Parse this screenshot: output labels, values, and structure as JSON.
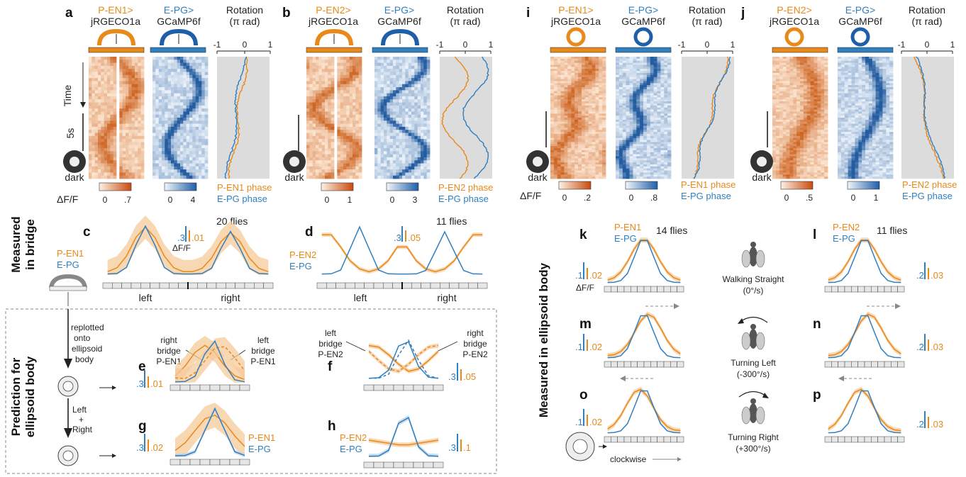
{
  "top_row": {
    "a": {
      "label": "a",
      "left_title": [
        "P-EN1>",
        "jRGECO1a"
      ],
      "right_title": [
        "E-PG>",
        "GCaMP6f"
      ],
      "rot_title": [
        "Rotation",
        "(π rad)"
      ],
      "rot_ticks": [
        "-1",
        "0",
        "1"
      ],
      "time_label": "Time",
      "scale_label": "5s",
      "dark": "dark",
      "left_cbar": [
        "0",
        ".7"
      ],
      "right_cbar": [
        "0",
        "4"
      ],
      "phase": [
        "P-EN1 phase",
        "E-PG phase"
      ],
      "dff": "ΔF/F"
    },
    "b": {
      "label": "b",
      "left_title": [
        "P-EN2>",
        "jRGECO1a"
      ],
      "right_title": [
        "E-PG>",
        "GCaMP6f"
      ],
      "rot_title": [
        "Rotation",
        "(π rad)"
      ],
      "rot_ticks": [
        "-1",
        "0",
        "1"
      ],
      "dark": "dark",
      "left_cbar": [
        "0",
        "1"
      ],
      "right_cbar": [
        "0",
        "3"
      ],
      "phase": [
        "P-EN2 phase",
        "E-PG phase"
      ]
    },
    "i": {
      "label": "i",
      "left_title": [
        "P-EN1>",
        "jRGECO1a"
      ],
      "right_title": [
        "E-PG>",
        "GCaMP6f"
      ],
      "rot_title": [
        "Rotation",
        "(π rad)"
      ],
      "rot_ticks": [
        "-1",
        "0",
        "1"
      ],
      "dark": "dark",
      "left_cbar": [
        "0",
        ".2"
      ],
      "right_cbar": [
        "0",
        ".8"
      ],
      "phase": [
        "P-EN1 phase",
        "E-PG phase"
      ],
      "dff": "ΔF/F"
    },
    "j": {
      "label": "j",
      "left_title": [
        "P-EN2>",
        "jRGECO1a"
      ],
      "right_title": [
        "E-PG>",
        "GCaMP6f"
      ],
      "rot_title": [
        "Rotation",
        "(π rad)"
      ],
      "rot_ticks": [
        "-1",
        "0",
        "1"
      ],
      "dark": "dark",
      "left_cbar": [
        "0",
        ".5"
      ],
      "right_cbar": [
        "0",
        "1"
      ],
      "phase": [
        "P-EN2 phase",
        "E-PG phase"
      ]
    }
  },
  "bridge": {
    "side_label": [
      "Measured",
      "in bridge"
    ],
    "c": {
      "label": "c",
      "flies": "20 flies",
      "legend": [
        "P-EN1",
        "E-PG"
      ],
      "scale": [
        ".3",
        ".01"
      ],
      "dff": "ΔF/F",
      "axis": [
        "left",
        "right"
      ]
    },
    "d": {
      "label": "d",
      "flies": "11 flies",
      "legend": [
        "P-EN2",
        "E-PG"
      ],
      "scale": [
        ".3",
        ".05"
      ],
      "axis": [
        "left",
        "right"
      ]
    }
  },
  "prediction": {
    "side_label": [
      "Prediction for",
      "ellipsoid body"
    ],
    "replot": [
      "replotted",
      "onto",
      "ellipsoid",
      "body"
    ],
    "combine": [
      "Left",
      "+",
      "Right"
    ],
    "e": {
      "label": "e",
      "ann_right": [
        "right",
        "bridge",
        "P-EN1"
      ],
      "ann_left": [
        "left",
        "bridge",
        "P-EN1"
      ],
      "scale": [
        ".3",
        ".01"
      ]
    },
    "f": {
      "label": "f",
      "ann_left": [
        "left",
        "bridge",
        "P-EN2"
      ],
      "ann_right": [
        "right",
        "bridge",
        "P-EN2"
      ],
      "scale": [
        ".3",
        ".05"
      ]
    },
    "g": {
      "label": "g",
      "legend": [
        "P-EN1",
        "E-PG"
      ],
      "scale": [
        ".3",
        ".02"
      ]
    },
    "h": {
      "label": "h",
      "legend": [
        "P-EN2",
        "E-PG"
      ],
      "scale": [
        ".3",
        ".1"
      ]
    }
  },
  "ellipsoid": {
    "side_label": "Measured in ellipsoid body",
    "k": {
      "label": "k",
      "legend": [
        "P-EN1",
        "E-PG"
      ],
      "flies": "14 flies",
      "scale": [
        ".1",
        ".02"
      ],
      "dff": "ΔF/F"
    },
    "l": {
      "label": "l",
      "legend": [
        "P-EN2",
        "E-PG"
      ],
      "flies": "11 flies",
      "scale": [
        ".2",
        ".03"
      ]
    },
    "m": {
      "label": "m",
      "scale": [
        ".1",
        ".02"
      ]
    },
    "n": {
      "label": "n",
      "scale": [
        ".2",
        ".03"
      ]
    },
    "o": {
      "label": "o",
      "scale": [
        ".1",
        ".02"
      ]
    },
    "p": {
      "label": "p",
      "scale": [
        ".2",
        ".03"
      ]
    },
    "conditions": [
      {
        "name": "Walking Straight",
        "speed": "(0°/s)"
      },
      {
        "name": "Turning Left",
        "speed": "(-300°/s)"
      },
      {
        "name": "Turning Right",
        "speed": "(+300°/s)"
      }
    ],
    "clockwise": "clockwise"
  },
  "colors": {
    "orange": "#e8891a",
    "blue": "#2f7fc1",
    "band_orange": "#f6c99a",
    "band_blue": "#b9cfe6",
    "grey": "#dcdcdc"
  }
}
